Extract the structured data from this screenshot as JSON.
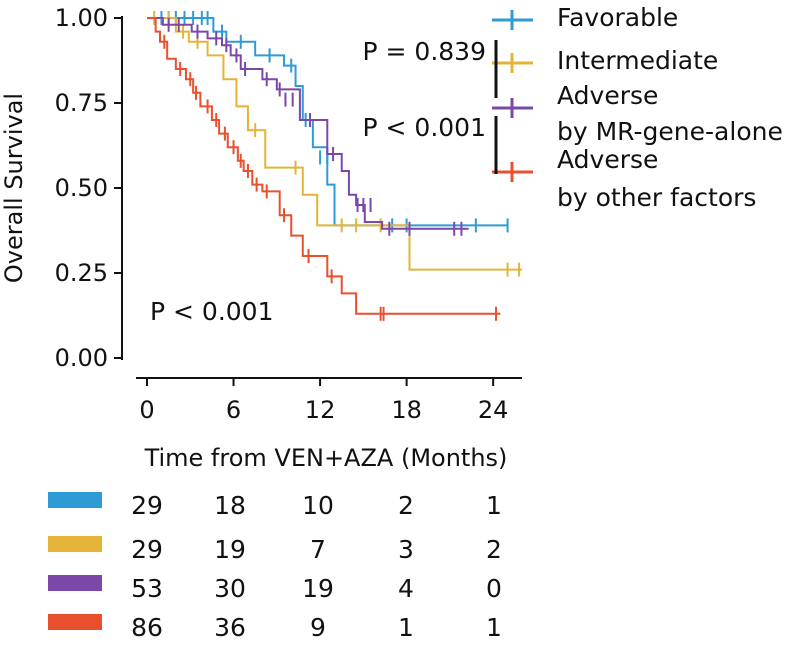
{
  "chart_data": {
    "type": "line",
    "subtype": "kaplan-meier",
    "title": "",
    "xlabel": "Time from VEN+AZA (Months)",
    "ylabel": "Overall Survival",
    "xlim": [
      0,
      26
    ],
    "ylim": [
      0,
      1
    ],
    "xticks": [
      0,
      6,
      12,
      18,
      24
    ],
    "xtick_labels": [
      "0",
      "6",
      "12",
      "18",
      "24"
    ],
    "yticks": [
      0,
      0.25,
      0.5,
      0.75,
      1.0
    ],
    "ytick_labels": [
      "0.00",
      "0.25",
      "0.50",
      "0.75",
      "1.00"
    ],
    "grid": false,
    "legend_position": "top-right, outside plot",
    "overall_pvalue_label": "P < 0.001",
    "pairwise_pvalues": [
      {
        "label": "P = 0.839",
        "between": [
          "Intermediate",
          "Adverse by MR-gene-alone"
        ]
      },
      {
        "label": "P < 0.001",
        "between": [
          "Adverse by MR-gene-alone",
          "Adverse by other factors"
        ]
      }
    ],
    "series": [
      {
        "name": "Favorable",
        "legend_lines": [
          "Favorable"
        ],
        "color": "#2E9AD6",
        "steps": [
          [
            0,
            1.0
          ],
          [
            4.6,
            0.96
          ],
          [
            5.5,
            0.93
          ],
          [
            7.5,
            0.89
          ],
          [
            9.5,
            0.86
          ],
          [
            10.3,
            0.8
          ],
          [
            10.8,
            0.7
          ],
          [
            11.5,
            0.62
          ],
          [
            12.5,
            0.51
          ],
          [
            13.0,
            0.39
          ],
          [
            25,
            0.39
          ]
        ],
        "censor": [
          [
            1,
            1.0
          ],
          [
            1.5,
            1.0
          ],
          [
            2,
            1.0
          ],
          [
            2.6,
            1.0
          ],
          [
            3.2,
            1.0
          ],
          [
            3.8,
            1.0
          ],
          [
            4.2,
            1.0
          ],
          [
            5.2,
            0.96
          ],
          [
            6.5,
            0.93
          ],
          [
            8.5,
            0.89
          ],
          [
            10,
            0.86
          ],
          [
            11,
            0.7
          ],
          [
            12,
            0.59
          ],
          [
            12.5,
            0.59
          ],
          [
            17,
            0.39
          ],
          [
            18,
            0.39
          ],
          [
            22.8,
            0.39
          ],
          [
            25,
            0.39
          ]
        ]
      },
      {
        "name": "Intermediate",
        "legend_lines": [
          "Intermediate"
        ],
        "color": "#E3B437",
        "steps": [
          [
            0,
            1.0
          ],
          [
            2.0,
            0.96
          ],
          [
            2.9,
            0.93
          ],
          [
            4.2,
            0.89
          ],
          [
            5.3,
            0.82
          ],
          [
            6.2,
            0.74
          ],
          [
            7.0,
            0.67
          ],
          [
            8.2,
            0.56
          ],
          [
            10.8,
            0.48
          ],
          [
            11.8,
            0.39
          ],
          [
            18.2,
            0.26
          ],
          [
            26,
            0.26
          ]
        ],
        "censor": [
          [
            0.5,
            1.0
          ],
          [
            1.5,
            1.0
          ],
          [
            2.5,
            0.96
          ],
          [
            3.5,
            0.93
          ],
          [
            7.5,
            0.67
          ],
          [
            10.3,
            0.56
          ],
          [
            13.5,
            0.39
          ],
          [
            14.5,
            0.39
          ],
          [
            16.2,
            0.39
          ],
          [
            25,
            0.26
          ],
          [
            25.8,
            0.26
          ]
        ]
      },
      {
        "name": "Adverse by MR-gene-alone",
        "legend_lines": [
          "Adverse",
          "by MR-gene-alone"
        ],
        "color": "#7B47A8",
        "steps": [
          [
            0,
            1.0
          ],
          [
            1.1,
            0.98
          ],
          [
            3.1,
            0.96
          ],
          [
            4.2,
            0.94
          ],
          [
            5.2,
            0.92
          ],
          [
            5.8,
            0.89
          ],
          [
            6.5,
            0.85
          ],
          [
            8.0,
            0.82
          ],
          [
            9.0,
            0.79
          ],
          [
            10.6,
            0.7
          ],
          [
            12.5,
            0.6
          ],
          [
            13.5,
            0.55
          ],
          [
            14.0,
            0.48
          ],
          [
            14.5,
            0.45
          ],
          [
            15.1,
            0.4
          ],
          [
            16.3,
            0.38
          ],
          [
            22.3,
            0.38
          ]
        ],
        "censor": [
          [
            1.5,
            0.98
          ],
          [
            2.2,
            0.98
          ],
          [
            3.5,
            0.96
          ],
          [
            4.8,
            0.94
          ],
          [
            5.5,
            0.92
          ],
          [
            6.2,
            0.89
          ],
          [
            6.8,
            0.85
          ],
          [
            8.3,
            0.82
          ],
          [
            9.2,
            0.79
          ],
          [
            9.6,
            0.76
          ],
          [
            10.1,
            0.76
          ],
          [
            11.3,
            0.7
          ],
          [
            12.9,
            0.6
          ],
          [
            14.6,
            0.45
          ],
          [
            15.0,
            0.45
          ],
          [
            15.5,
            0.45
          ],
          [
            16.8,
            0.38
          ],
          [
            18.2,
            0.38
          ],
          [
            21.3,
            0.38
          ],
          [
            21.8,
            0.38
          ]
        ]
      },
      {
        "name": "Adverse by other factors",
        "legend_lines": [
          "Adverse",
          "by other factors"
        ],
        "color": "#E8502E",
        "steps": [
          [
            0,
            1.0
          ],
          [
            0.6,
            0.96
          ],
          [
            0.9,
            0.93
          ],
          [
            1.4,
            0.88
          ],
          [
            2.0,
            0.85
          ],
          [
            2.7,
            0.82
          ],
          [
            3.2,
            0.78
          ],
          [
            3.7,
            0.74
          ],
          [
            4.5,
            0.7
          ],
          [
            5.0,
            0.66
          ],
          [
            5.6,
            0.62
          ],
          [
            6.3,
            0.58
          ],
          [
            6.7,
            0.55
          ],
          [
            7.3,
            0.51
          ],
          [
            8.0,
            0.49
          ],
          [
            9.2,
            0.42
          ],
          [
            10.0,
            0.36
          ],
          [
            10.8,
            0.3
          ],
          [
            12.5,
            0.24
          ],
          [
            13.5,
            0.19
          ],
          [
            14.5,
            0.13
          ],
          [
            24.5,
            0.13
          ]
        ],
        "censor": [
          [
            1.2,
            0.93
          ],
          [
            2.3,
            0.85
          ],
          [
            3.0,
            0.82
          ],
          [
            3.4,
            0.78
          ],
          [
            4.2,
            0.74
          ],
          [
            4.8,
            0.7
          ],
          [
            5.4,
            0.66
          ],
          [
            6.0,
            0.62
          ],
          [
            6.5,
            0.58
          ],
          [
            7.0,
            0.55
          ],
          [
            7.6,
            0.51
          ],
          [
            8.3,
            0.49
          ],
          [
            9.5,
            0.42
          ],
          [
            11.2,
            0.3
          ],
          [
            12.8,
            0.24
          ],
          [
            16.2,
            0.13
          ],
          [
            16.4,
            0.13
          ],
          [
            24.2,
            0.13
          ]
        ]
      }
    ],
    "risk_table": {
      "time_points": [
        0,
        6,
        12,
        18,
        24
      ],
      "rows": [
        {
          "series": "Favorable",
          "color": "#2E9AD6",
          "values": [
            29,
            18,
            10,
            2,
            1
          ]
        },
        {
          "series": "Intermediate",
          "color": "#E3B437",
          "values": [
            29,
            19,
            7,
            3,
            2
          ]
        },
        {
          "series": "Adverse by MR-gene-alone",
          "color": "#7B47A8",
          "values": [
            53,
            30,
            19,
            4,
            0
          ]
        },
        {
          "series": "Adverse by other factors",
          "color": "#E8502E",
          "values": [
            86,
            36,
            9,
            1,
            1
          ]
        }
      ]
    }
  }
}
